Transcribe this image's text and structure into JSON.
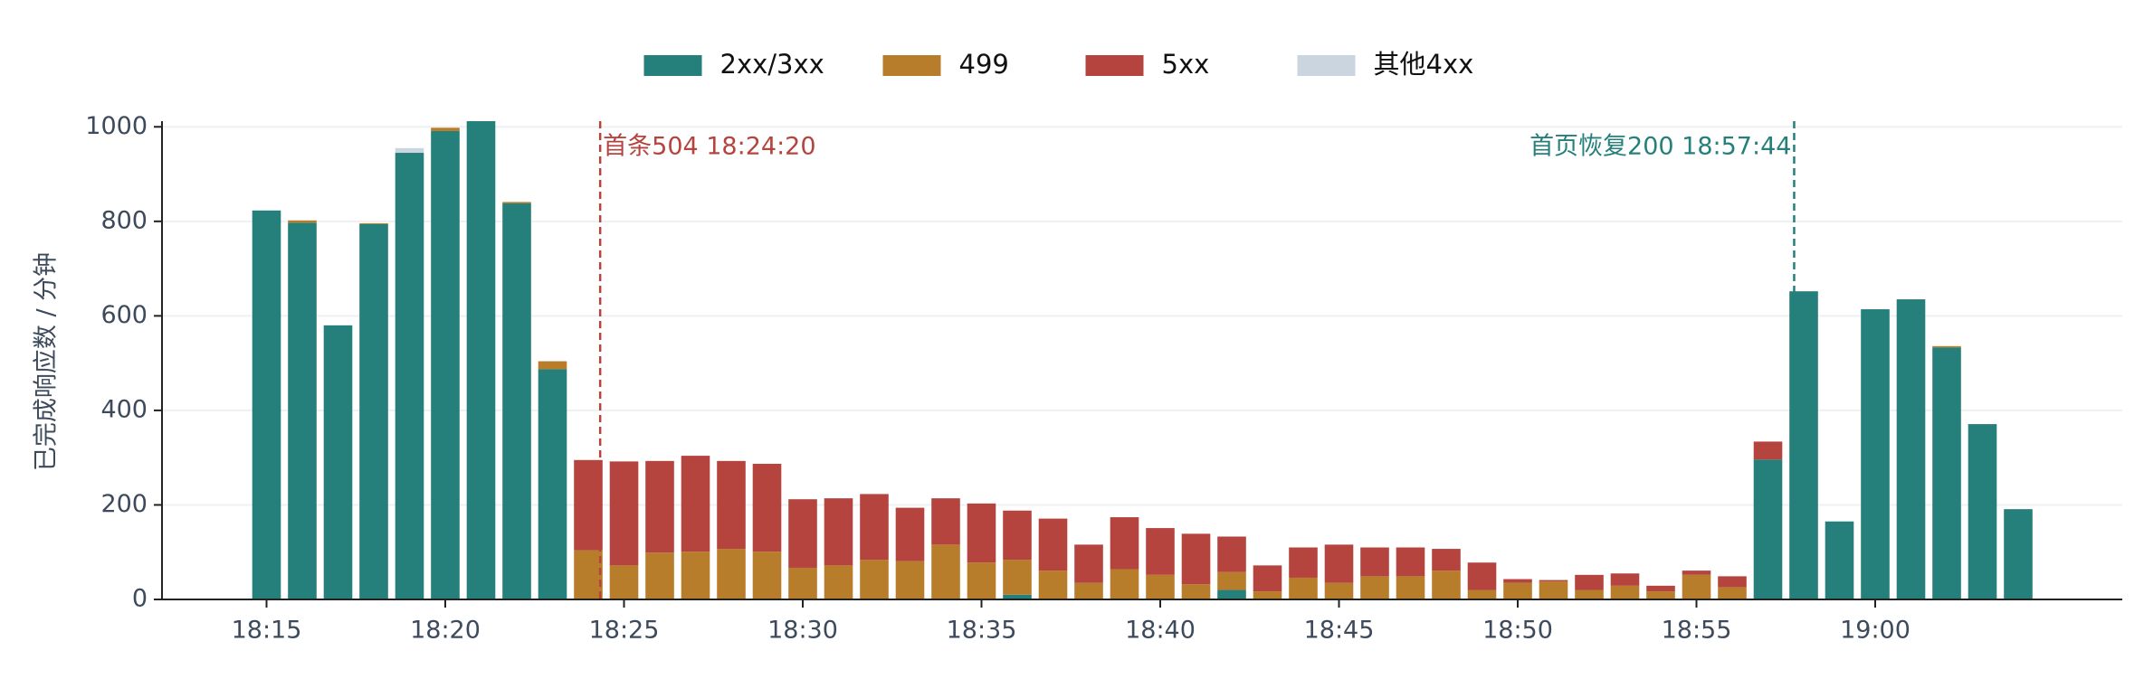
{
  "chart_data": {
    "type": "stacked_bar",
    "y_label": "已完成响应数 / 分钟",
    "categories": [
      "18:15",
      null,
      null,
      null,
      null,
      "18:20",
      null,
      null,
      null,
      null,
      "18:25",
      null,
      null,
      null,
      null,
      "18:30",
      null,
      null,
      null,
      null,
      "18:35",
      null,
      null,
      null,
      null,
      "18:40",
      null,
      null,
      null,
      null,
      "18:45",
      null,
      null,
      null,
      null,
      "18:50",
      null,
      null,
      null,
      null,
      "18:55",
      null,
      null,
      null,
      null,
      "19:00",
      null,
      null,
      null,
      null
    ],
    "series": [
      {
        "name": "2xx/3xx",
        "color": "#257f7a",
        "values": [
          823,
          797,
          580,
          794,
          945,
          991,
          1012,
          838,
          487,
          0,
          0,
          0,
          0,
          0,
          0,
          0,
          0,
          0,
          0,
          0,
          0,
          10,
          0,
          0,
          0,
          0,
          0,
          20,
          0,
          0,
          0,
          0,
          0,
          0,
          0,
          0,
          0,
          0,
          0,
          0,
          0,
          0,
          296,
          652,
          165,
          614,
          635,
          533,
          371,
          191
        ]
      },
      {
        "name": "499",
        "color": "#b87d2a",
        "values": [
          0,
          5,
          0,
          2,
          0,
          7,
          0,
          3,
          17,
          104,
          72,
          99,
          101,
          107,
          101,
          67,
          72,
          84,
          81,
          116,
          78,
          74,
          61,
          35,
          64,
          52,
          32,
          38,
          17,
          46,
          35,
          49,
          49,
          61,
          20,
          35,
          38,
          20,
          29,
          17,
          52,
          26,
          0,
          0,
          0,
          0,
          0,
          3,
          0,
          0
        ]
      },
      {
        "name": "5xx",
        "color": "#b5443f",
        "values": [
          0,
          0,
          0,
          0,
          0,
          0,
          0,
          0,
          0,
          191,
          220,
          194,
          203,
          186,
          186,
          145,
          142,
          139,
          113,
          98,
          125,
          104,
          110,
          81,
          110,
          99,
          107,
          75,
          55,
          64,
          81,
          61,
          61,
          46,
          58,
          8,
          3,
          32,
          26,
          12,
          9,
          23,
          38,
          0,
          0,
          0,
          0,
          0,
          0,
          0
        ]
      },
      {
        "name": "其他4xx",
        "color": "#cbd5e0",
        "values": [
          0,
          0,
          0,
          0,
          10,
          0,
          0,
          0,
          0,
          0,
          0,
          0,
          0,
          0,
          0,
          0,
          0,
          0,
          0,
          0,
          0,
          0,
          0,
          0,
          0,
          0,
          0,
          0,
          0,
          0,
          0,
          0,
          0,
          0,
          0,
          0,
          0,
          0,
          0,
          0,
          0,
          0,
          0,
          0,
          0,
          0,
          0,
          0,
          0,
          0
        ]
      }
    ],
    "ylim": [
      0,
      1012
    ],
    "yticks": [
      0,
      200,
      400,
      600,
      800,
      1000
    ],
    "grid": true,
    "legend": "top",
    "annotations": [
      {
        "text": "首条504 18:24:20",
        "position": 9.333,
        "color": "#b5443f"
      },
      {
        "text": "首页恢复200 18:57:44",
        "position": 42.733,
        "color": "#257f7a"
      }
    ]
  }
}
